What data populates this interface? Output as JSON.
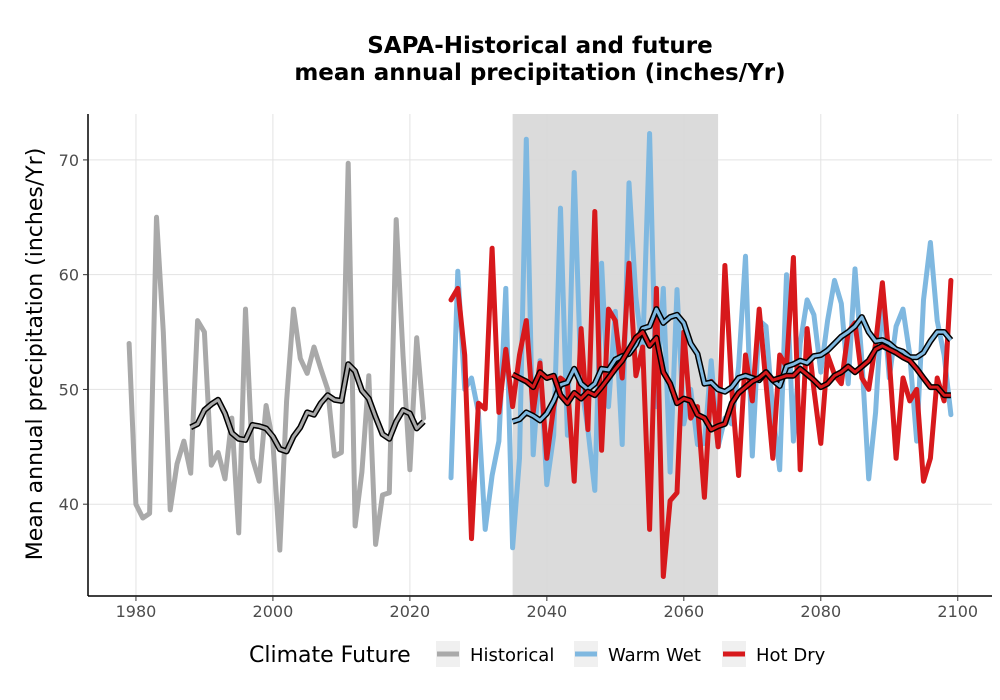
{
  "chart_data": {
    "type": "line",
    "title_line1": "SAPA-Historical and future",
    "title_line2": "mean annual precipitation (inches/Yr)",
    "ylabel": "Mean annual precipitation (inches/Yr)",
    "xlabel": "",
    "xlim": [
      1973,
      2105
    ],
    "ylim": [
      32,
      74
    ],
    "x_ticks": [
      1980,
      2000,
      2020,
      2040,
      2060,
      2080,
      2100
    ],
    "y_ticks": [
      40,
      50,
      60,
      70
    ],
    "grid": true,
    "reference_period": [
      2035,
      2065
    ],
    "legend": {
      "title": "Climate Future",
      "position": "bottom",
      "entries": [
        {
          "name": "Historical",
          "color": "#a9a9a9"
        },
        {
          "name": "Warm Wet",
          "color": "#7fb8e0"
        },
        {
          "name": "Hot Dry",
          "color": "#d7191c"
        }
      ]
    },
    "series": [
      {
        "name": "Historical",
        "color": "#a9a9a9",
        "x": [
          1979,
          1980,
          1981,
          1982,
          1983,
          1984,
          1985,
          1986,
          1987,
          1988,
          1989,
          1990,
          1991,
          1992,
          1993,
          1994,
          1995,
          1996,
          1997,
          1998,
          1999,
          2000,
          2001,
          2002,
          2003,
          2004,
          2005,
          2006,
          2007,
          2008,
          2009,
          2010,
          2011,
          2012,
          2013,
          2014,
          2015,
          2016,
          2017,
          2018,
          2019,
          2020,
          2021,
          2022
        ],
        "values": [
          54.0,
          40.0,
          38.8,
          39.2,
          65.0,
          55.0,
          39.5,
          43.5,
          45.5,
          42.7,
          56.0,
          55.0,
          43.4,
          44.5,
          42.2,
          47.5,
          37.5,
          57.0,
          44.0,
          42.0,
          48.6,
          45.4,
          36.0,
          49.0,
          57.0,
          52.7,
          51.4,
          53.7,
          51.8,
          50.0,
          44.2,
          44.5,
          69.7,
          38.1,
          42.8,
          51.2,
          36.5,
          40.8,
          41.0,
          64.8,
          53.0,
          43.0,
          54.5,
          47.5
        ],
        "rolling": {
          "x": [
            1988,
            1989,
            1990,
            1991,
            1992,
            1993,
            1994,
            1995,
            1996,
            1997,
            1998,
            1999,
            2000,
            2001,
            2002,
            2003,
            2004,
            2005,
            2006,
            2007,
            2008,
            2009,
            2010,
            2011,
            2012,
            2013,
            2014,
            2015,
            2016,
            2017,
            2018,
            2019,
            2020,
            2021,
            2022
          ],
          "values": [
            46.7,
            47.0,
            48.2,
            48.7,
            49.1,
            47.9,
            46.2,
            45.7,
            45.6,
            46.9,
            46.8,
            46.6,
            45.9,
            44.8,
            44.6,
            45.9,
            46.7,
            48.0,
            47.8,
            48.8,
            49.5,
            49.1,
            49.0,
            52.2,
            51.6,
            49.9,
            49.2,
            47.6,
            46.1,
            45.7,
            47.2,
            48.2,
            47.9,
            46.6,
            47.2
          ]
        }
      },
      {
        "name": "Warm Wet",
        "color": "#7fb8e0",
        "x": [
          2026,
          2027,
          2028,
          2029,
          2030,
          2031,
          2032,
          2033,
          2034,
          2035,
          2036,
          2037,
          2038,
          2039,
          2040,
          2041,
          2042,
          2043,
          2044,
          2045,
          2046,
          2047,
          2048,
          2049,
          2050,
          2051,
          2052,
          2053,
          2054,
          2055,
          2056,
          2057,
          2058,
          2059,
          2060,
          2061,
          2062,
          2063,
          2064,
          2065,
          2066,
          2067,
          2068,
          2069,
          2070,
          2071,
          2072,
          2073,
          2074,
          2075,
          2076,
          2077,
          2078,
          2079,
          2080,
          2081,
          2082,
          2083,
          2084,
          2085,
          2086,
          2087,
          2088,
          2089,
          2090,
          2091,
          2092,
          2093,
          2094,
          2095,
          2096,
          2097,
          2098,
          2099
        ],
        "values": [
          42.3,
          60.3,
          50.0,
          51.0,
          48.0,
          37.8,
          42.5,
          45.5,
          58.8,
          36.2,
          44.0,
          71.8,
          44.3,
          52.5,
          41.7,
          46.0,
          65.8,
          46.0,
          68.9,
          50.5,
          46.5,
          41.2,
          61.0,
          48.5,
          56.8,
          45.2,
          68.0,
          58.0,
          53.3,
          72.3,
          48.5,
          58.8,
          42.8,
          58.7,
          47.0,
          50.0,
          45.2,
          45.3,
          52.5,
          45.0,
          47.5,
          47.0,
          52.0,
          61.6,
          44.2,
          56.0,
          55.5,
          48.0,
          43.0,
          60.0,
          45.5,
          54.0,
          57.8,
          56.5,
          51.5,
          56.0,
          59.5,
          57.5,
          50.5,
          60.5,
          52.5,
          42.2,
          48.0,
          58.2,
          51.0,
          55.5,
          57.0,
          53.0,
          45.5,
          57.8,
          62.8,
          56.0,
          53.0,
          47.8
        ],
        "rolling": {
          "x": [
            2035,
            2036,
            2037,
            2038,
            2039,
            2040,
            2041,
            2042,
            2043,
            2044,
            2045,
            2046,
            2047,
            2048,
            2049,
            2050,
            2051,
            2052,
            2053,
            2054,
            2055,
            2056,
            2057,
            2058,
            2059,
            2060,
            2061,
            2062,
            2063,
            2064,
            2065,
            2066,
            2067,
            2068,
            2069,
            2070,
            2071,
            2072,
            2073,
            2074,
            2075,
            2076,
            2077,
            2078,
            2079,
            2080,
            2081,
            2082,
            2083,
            2084,
            2085,
            2086,
            2087,
            2088,
            2089,
            2090,
            2091,
            2092,
            2093,
            2094,
            2095,
            2096,
            2097,
            2098,
            2099
          ],
          "values": [
            47.2,
            47.4,
            48.0,
            47.7,
            47.3,
            47.9,
            49.0,
            50.4,
            50.6,
            51.8,
            50.5,
            50.0,
            50.5,
            51.8,
            51.7,
            52.6,
            52.9,
            53.1,
            53.9,
            55.3,
            55.5,
            57.0,
            55.8,
            56.3,
            56.5,
            55.8,
            54.0,
            53.1,
            50.5,
            50.6,
            50.0,
            49.8,
            50.2,
            51.0,
            51.2,
            51.0,
            50.8,
            51.5,
            50.8,
            50.3,
            52.0,
            52.2,
            52.5,
            52.3,
            52.9,
            53.0,
            53.4,
            54.0,
            54.6,
            55.0,
            55.5,
            56.3,
            55.0,
            54.2,
            54.3,
            54.0,
            53.5,
            53.3,
            52.8,
            52.8,
            53.2,
            54.2,
            55.0,
            55.0,
            54.3
          ]
        }
      },
      {
        "name": "Hot Dry",
        "color": "#d7191c",
        "x": [
          2026,
          2027,
          2028,
          2029,
          2030,
          2031,
          2032,
          2033,
          2034,
          2035,
          2036,
          2037,
          2038,
          2039,
          2040,
          2041,
          2042,
          2043,
          2044,
          2045,
          2046,
          2047,
          2048,
          2049,
          2050,
          2051,
          2052,
          2053,
          2054,
          2055,
          2056,
          2057,
          2058,
          2059,
          2060,
          2061,
          2062,
          2063,
          2064,
          2065,
          2066,
          2067,
          2068,
          2069,
          2070,
          2071,
          2072,
          2073,
          2074,
          2075,
          2076,
          2077,
          2078,
          2079,
          2080,
          2081,
          2082,
          2083,
          2084,
          2085,
          2086,
          2087,
          2088,
          2089,
          2090,
          2091,
          2092,
          2093,
          2094,
          2095,
          2096,
          2097,
          2098,
          2099
        ],
        "values": [
          57.8,
          58.8,
          53.0,
          37.0,
          48.8,
          48.3,
          62.3,
          48.0,
          53.5,
          48.5,
          53.0,
          56.0,
          48.0,
          52.3,
          44.0,
          48.5,
          51.0,
          50.5,
          42.0,
          55.3,
          46.5,
          65.5,
          44.7,
          57.0,
          56.0,
          51.0,
          61.0,
          51.2,
          53.7,
          37.8,
          58.8,
          33.7,
          40.3,
          41.0,
          55.0,
          47.5,
          48.5,
          40.6,
          50.7,
          45.0,
          60.8,
          50.0,
          42.5,
          53.0,
          49.0,
          57.0,
          50.5,
          44.0,
          53.0,
          52.0,
          61.5,
          43.0,
          55.3,
          50.0,
          45.3,
          53.0,
          51.3,
          50.5,
          55.0,
          55.8,
          51.0,
          50.0,
          54.0,
          59.3,
          52.5,
          44.0,
          51.0,
          49.0,
          50.0,
          42.0,
          44.0,
          51.0,
          49.0,
          59.5
        ],
        "rolling": {
          "x": [
            2035,
            2036,
            2037,
            2038,
            2039,
            2040,
            2041,
            2042,
            2043,
            2044,
            2045,
            2046,
            2047,
            2048,
            2049,
            2050,
            2051,
            2052,
            2053,
            2054,
            2055,
            2056,
            2057,
            2058,
            2059,
            2060,
            2061,
            2062,
            2063,
            2064,
            2065,
            2066,
            2067,
            2068,
            2069,
            2070,
            2071,
            2072,
            2073,
            2074,
            2075,
            2076,
            2077,
            2078,
            2079,
            2080,
            2081,
            2082,
            2083,
            2084,
            2085,
            2086,
            2087,
            2088,
            2089,
            2090,
            2091,
            2092,
            2093,
            2094,
            2095,
            2096,
            2097,
            2098,
            2099
          ],
          "values": [
            51.3,
            51.0,
            50.7,
            50.2,
            51.5,
            51.0,
            51.2,
            49.5,
            48.8,
            49.7,
            49.2,
            49.8,
            49.5,
            50.2,
            51.0,
            51.8,
            52.5,
            53.5,
            54.5,
            55.0,
            53.8,
            54.5,
            51.5,
            50.5,
            48.8,
            49.2,
            49.0,
            47.8,
            47.5,
            46.5,
            46.8,
            47.0,
            48.8,
            49.7,
            50.2,
            50.7,
            51.0,
            51.5,
            50.8,
            51.0,
            51.2,
            51.2,
            51.8,
            51.3,
            50.8,
            50.2,
            50.5,
            51.2,
            51.5,
            52.0,
            51.5,
            52.0,
            52.5,
            53.5,
            53.8,
            53.5,
            53.2,
            52.8,
            52.5,
            51.8,
            51.0,
            50.2,
            50.2,
            49.5,
            49.5
          ]
        }
      }
    ]
  }
}
